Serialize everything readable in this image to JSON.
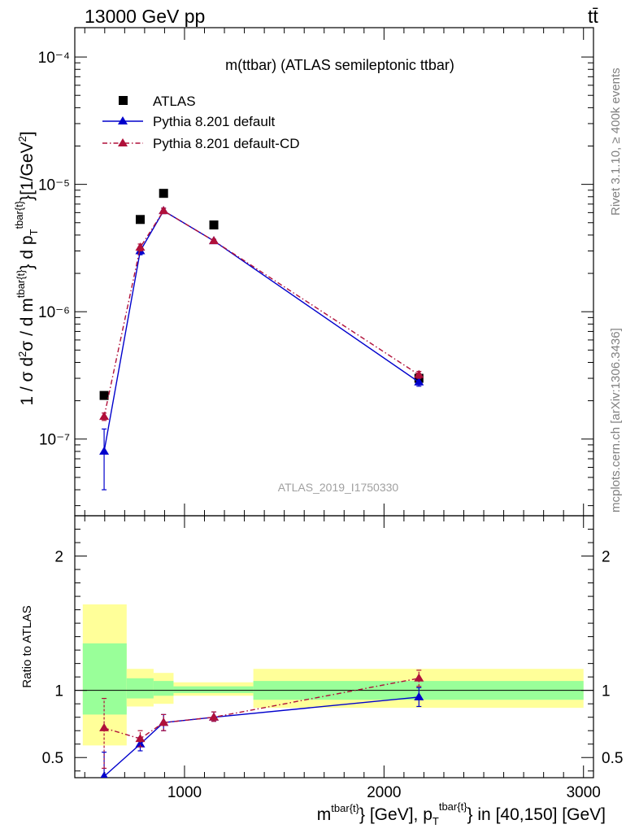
{
  "header": {
    "energy_label": "13000 GeV pp",
    "process_label": "tt̄"
  },
  "side_labels": {
    "rivet": "Rivet 3.1.10, ≥ 400k events",
    "mcplots": "mcplots.cern.ch [arXiv:1306.3436]"
  },
  "watermark": "ATLAS_2019_I1750330",
  "chart_data": [
    {
      "type": "scatter",
      "panel": "main",
      "title": "m(ttbar) (ATLAS semileptonic ttbar)",
      "ylabel": "1 / σ d²σ / d m^{tbar{t}} d p_T^{tbar{t}}[1/GeV²]",
      "yscale": "log",
      "xlim": [
        450,
        3050
      ],
      "ylim": [
        2.5e-08,
        0.00017
      ],
      "yticks": [
        {
          "v": 1e-07,
          "l": "10⁻⁷"
        },
        {
          "v": 1e-06,
          "l": "10⁻⁶"
        },
        {
          "v": 1e-05,
          "l": "10⁻⁵"
        },
        {
          "v": 0.0001,
          "l": "10⁻⁴"
        }
      ],
      "legend_position": "top-left",
      "series": [
        {
          "name": "ATLAS",
          "color": "#000000",
          "marker": "square",
          "x": [
            597,
            778,
            895,
            1147,
            2175
          ],
          "y": [
            2.2e-07,
            5.3e-06,
            8.5e-06,
            4.8e-06,
            3e-07
          ]
        },
        {
          "name": "Pythia 8.201 default",
          "color": "#0000cc",
          "marker": "triangle",
          "line": "solid",
          "x": [
            597,
            778,
            895,
            1147,
            2175
          ],
          "y": [
            8e-08,
            3e-06,
            6.2e-06,
            3.6e-06,
            2.8e-07
          ],
          "err_low": [
            4e-08,
            2.8e-06,
            5.9e-06,
            3.5e-06,
            2.6e-07
          ],
          "err_high": [
            1.2e-07,
            3.2e-06,
            6.5e-06,
            3.7e-06,
            3e-07
          ]
        },
        {
          "name": "Pythia 8.201 default-CD",
          "color": "#b0103a",
          "marker": "triangle",
          "line": "dashdot",
          "x": [
            597,
            778,
            895,
            1147,
            2175
          ],
          "y": [
            1.5e-07,
            3.2e-06,
            6.2e-06,
            3.6e-06,
            3.2e-07
          ],
          "err_low": [
            1.4e-07,
            3e-06,
            5.9e-06,
            3.5e-06,
            3e-07
          ],
          "err_high": [
            1.6e-07,
            3.4e-06,
            6.5e-06,
            3.7e-06,
            3.4e-07
          ]
        }
      ]
    },
    {
      "type": "scatter",
      "panel": "ratio",
      "xlabel": "m^{tbar{t}} [GeV], p_T^{tbar{t}} in [40,150] [GeV]",
      "ylabel": "Ratio to ATLAS",
      "xlim": [
        450,
        3050
      ],
      "ylim": [
        0.35,
        2.3
      ],
      "xticks": [
        {
          "v": 1000,
          "l": "1000"
        },
        {
          "v": 2000,
          "l": "2000"
        },
        {
          "v": 3000,
          "l": "3000"
        }
      ],
      "yticks": [
        {
          "v": 0.5,
          "l": "0.5"
        },
        {
          "v": 1,
          "l": "1"
        },
        {
          "v": 2,
          "l": "2"
        }
      ],
      "bands": [
        {
          "x0": 490,
          "x1": 710,
          "inner": [
            0.82,
            1.35
          ],
          "outer": [
            0.59,
            1.64
          ]
        },
        {
          "x0": 710,
          "x1": 845,
          "inner": [
            0.94,
            1.09
          ],
          "outer": [
            0.88,
            1.16
          ]
        },
        {
          "x0": 845,
          "x1": 945,
          "inner": [
            0.96,
            1.07
          ],
          "outer": [
            0.9,
            1.13
          ]
        },
        {
          "x0": 945,
          "x1": 1345,
          "inner": [
            0.98,
            1.03
          ],
          "outer": [
            0.96,
            1.06
          ]
        },
        {
          "x0": 1345,
          "x1": 3000,
          "inner": [
            0.93,
            1.07
          ],
          "outer": [
            0.87,
            1.16
          ]
        }
      ],
      "series": [
        {
          "name": "Pythia 8.201 default",
          "color": "#0000cc",
          "marker": "triangle",
          "line": "solid",
          "x": [
            597,
            778,
            895,
            1147,
            2175
          ],
          "y": [
            0.36,
            0.6,
            0.76,
            0.8,
            0.95
          ],
          "err_low": [
            0.18,
            0.55,
            0.7,
            0.77,
            0.88
          ],
          "err_high": [
            0.54,
            0.65,
            0.82,
            0.84,
            1.02
          ]
        },
        {
          "name": "Pythia 8.201 default-CD",
          "color": "#b0103a",
          "marker": "triangle",
          "line": "dashdot",
          "x": [
            597,
            778,
            895,
            1147,
            2175
          ],
          "y": [
            0.72,
            0.64,
            0.76,
            0.8,
            1.09
          ],
          "err_low": [
            0.42,
            0.58,
            0.7,
            0.77,
            1.03
          ],
          "err_high": [
            0.94,
            0.7,
            0.82,
            0.84,
            1.15
          ]
        }
      ]
    }
  ]
}
